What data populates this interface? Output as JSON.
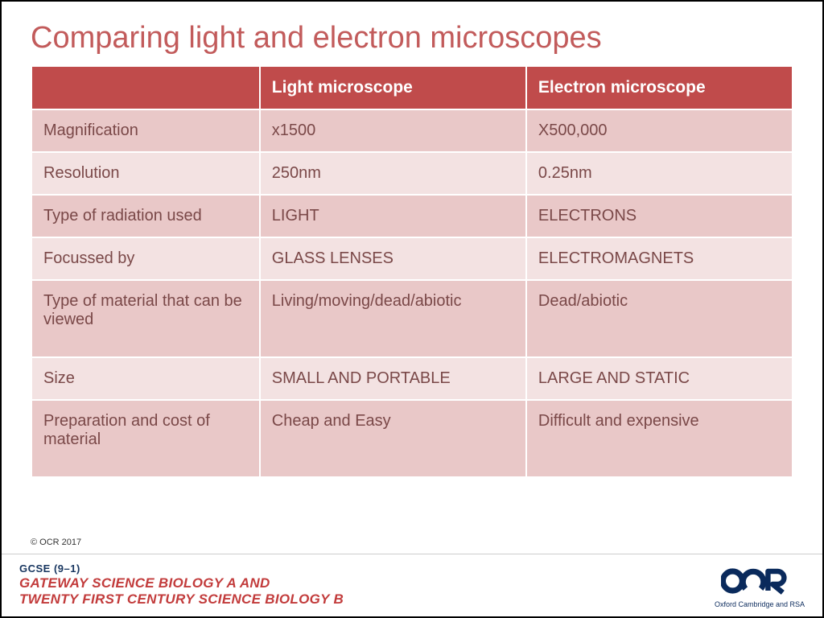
{
  "colors": {
    "title": "#c25b5b",
    "header_bg": "#c04b4b",
    "header_text": "#ffffff",
    "row_odd_bg": "#e9c8c8",
    "row_even_bg": "#f3e2e2",
    "body_text": "#7a4848",
    "footer_line1": "#17355f",
    "footer_line2": "#c23b3b",
    "logo_primary": "#0a2a5c"
  },
  "title": "Comparing light and electron microscopes",
  "table": {
    "columns": [
      "",
      "Light microscope",
      "Electron microscope"
    ],
    "rows": [
      {
        "label": "Magnification",
        "light": "x1500",
        "electron": "X500,000",
        "tall": false
      },
      {
        "label": "Resolution",
        "light": "250nm",
        "electron": "0.25nm",
        "tall": false
      },
      {
        "label": "Type of radiation used",
        "light": "LIGHT",
        "electron": "ELECTRONS",
        "tall": false
      },
      {
        "label": "Focussed by",
        "light": "GLASS LENSES",
        "electron": "ELECTROMAGNETS",
        "tall": false
      },
      {
        "label": "Type of material that can be viewed",
        "light": "Living/moving/dead/abiotic",
        "electron": "Dead/abiotic",
        "tall": true
      },
      {
        "label": "Size",
        "light": "SMALL AND PORTABLE",
        "electron": "LARGE AND STATIC",
        "tall": false
      },
      {
        "label": "Preparation and cost of material",
        "light": "Cheap and Easy",
        "electron": "Difficult and expensive",
        "tall": true
      }
    ],
    "col_widths": [
      "30%",
      "35%",
      "35%"
    ]
  },
  "copyright": "© OCR 2017",
  "footer": {
    "line1": "GCSE (9–1)",
    "line2a": "GATEWAY SCIENCE BIOLOGY A AND",
    "line2b": "TWENTY FIRST CENTURY SCIENCE BIOLOGY B",
    "logo_text": "OCR",
    "logo_sub": "Oxford Cambridge and RSA"
  }
}
